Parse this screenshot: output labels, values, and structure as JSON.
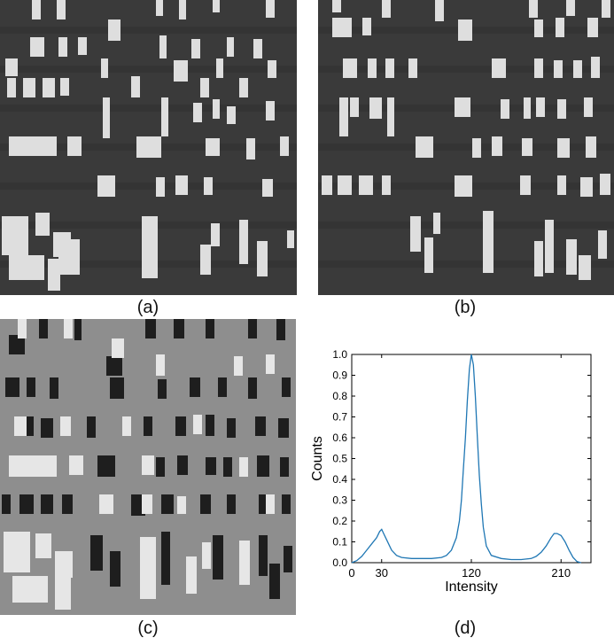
{
  "panels": {
    "a": {
      "caption": "(a)",
      "background": "#3a3a3a",
      "feature_color": "#dedede"
    },
    "b": {
      "caption": "(b)",
      "background": "#3a3a3a",
      "feature_color": "#dedede"
    },
    "c": {
      "caption": "(c)",
      "background": "#8e8e8e",
      "dark_color": "#1e1e1e",
      "light_color": "#e6e6e6"
    },
    "d": {
      "caption": "(d)"
    }
  },
  "chart_data": {
    "type": "line",
    "xlabel": "Intensity",
    "ylabel": "Counts",
    "xlim": [
      0,
      240
    ],
    "ylim": [
      0,
      1.0
    ],
    "xticks": [
      0,
      30,
      120,
      210
    ],
    "yticks": [
      0.0,
      0.1,
      0.2,
      0.3,
      0.4,
      0.5,
      0.6,
      0.7,
      0.8,
      0.9,
      1.0
    ],
    "ytick_labels": [
      "0.0",
      "0.1",
      "0.2",
      "0.3",
      "0.4",
      "0.5",
      "0.6",
      "0.7",
      "0.8",
      "0.9",
      "1.0"
    ],
    "line_color": "#1f77b4",
    "series": [
      {
        "x": [
          0,
          5,
          10,
          15,
          20,
          25,
          28,
          30,
          32,
          35,
          40,
          45,
          50,
          60,
          70,
          80,
          90,
          95,
          100,
          105,
          108,
          110,
          112,
          114,
          116,
          118,
          120,
          122,
          124,
          126,
          128,
          130,
          132,
          135,
          140,
          150,
          160,
          170,
          180,
          185,
          190,
          195,
          200,
          203,
          206,
          210,
          214,
          218,
          222,
          226,
          230
        ],
        "y": [
          0.0,
          0.01,
          0.03,
          0.06,
          0.09,
          0.12,
          0.15,
          0.16,
          0.14,
          0.11,
          0.06,
          0.035,
          0.025,
          0.02,
          0.02,
          0.02,
          0.025,
          0.035,
          0.06,
          0.12,
          0.2,
          0.3,
          0.45,
          0.6,
          0.78,
          0.93,
          1.0,
          0.95,
          0.8,
          0.6,
          0.42,
          0.28,
          0.17,
          0.08,
          0.035,
          0.02,
          0.015,
          0.015,
          0.02,
          0.03,
          0.05,
          0.08,
          0.12,
          0.14,
          0.14,
          0.13,
          0.1,
          0.06,
          0.025,
          0.005,
          0.0
        ]
      }
    ]
  }
}
